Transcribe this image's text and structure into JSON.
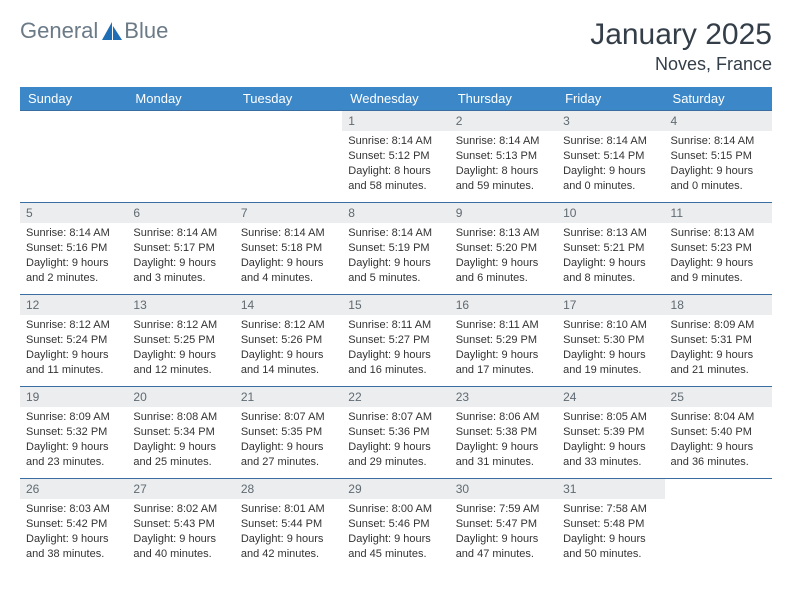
{
  "brand": {
    "name_part1": "General",
    "name_part2": "Blue",
    "color_text": "#6b7a87",
    "accent": "#1f6db3"
  },
  "header": {
    "title": "January 2025",
    "location": "Noves, France"
  },
  "calendar": {
    "header_bg": "#3b87c8",
    "header_text_color": "#ffffff",
    "daynum_bg": "#ecedee",
    "row_border": "#3b6ea0",
    "days": [
      "Sunday",
      "Monday",
      "Tuesday",
      "Wednesday",
      "Thursday",
      "Friday",
      "Saturday"
    ],
    "weeks": [
      [
        null,
        null,
        null,
        {
          "n": "1",
          "sr": "8:14 AM",
          "ss": "5:12 PM",
          "dl": "8 hours and 58 minutes."
        },
        {
          "n": "2",
          "sr": "8:14 AM",
          "ss": "5:13 PM",
          "dl": "8 hours and 59 minutes."
        },
        {
          "n": "3",
          "sr": "8:14 AM",
          "ss": "5:14 PM",
          "dl": "9 hours and 0 minutes."
        },
        {
          "n": "4",
          "sr": "8:14 AM",
          "ss": "5:15 PM",
          "dl": "9 hours and 0 minutes."
        }
      ],
      [
        {
          "n": "5",
          "sr": "8:14 AM",
          "ss": "5:16 PM",
          "dl": "9 hours and 2 minutes."
        },
        {
          "n": "6",
          "sr": "8:14 AM",
          "ss": "5:17 PM",
          "dl": "9 hours and 3 minutes."
        },
        {
          "n": "7",
          "sr": "8:14 AM",
          "ss": "5:18 PM",
          "dl": "9 hours and 4 minutes."
        },
        {
          "n": "8",
          "sr": "8:14 AM",
          "ss": "5:19 PM",
          "dl": "9 hours and 5 minutes."
        },
        {
          "n": "9",
          "sr": "8:13 AM",
          "ss": "5:20 PM",
          "dl": "9 hours and 6 minutes."
        },
        {
          "n": "10",
          "sr": "8:13 AM",
          "ss": "5:21 PM",
          "dl": "9 hours and 8 minutes."
        },
        {
          "n": "11",
          "sr": "8:13 AM",
          "ss": "5:23 PM",
          "dl": "9 hours and 9 minutes."
        }
      ],
      [
        {
          "n": "12",
          "sr": "8:12 AM",
          "ss": "5:24 PM",
          "dl": "9 hours and 11 minutes."
        },
        {
          "n": "13",
          "sr": "8:12 AM",
          "ss": "5:25 PM",
          "dl": "9 hours and 12 minutes."
        },
        {
          "n": "14",
          "sr": "8:12 AM",
          "ss": "5:26 PM",
          "dl": "9 hours and 14 minutes."
        },
        {
          "n": "15",
          "sr": "8:11 AM",
          "ss": "5:27 PM",
          "dl": "9 hours and 16 minutes."
        },
        {
          "n": "16",
          "sr": "8:11 AM",
          "ss": "5:29 PM",
          "dl": "9 hours and 17 minutes."
        },
        {
          "n": "17",
          "sr": "8:10 AM",
          "ss": "5:30 PM",
          "dl": "9 hours and 19 minutes."
        },
        {
          "n": "18",
          "sr": "8:09 AM",
          "ss": "5:31 PM",
          "dl": "9 hours and 21 minutes."
        }
      ],
      [
        {
          "n": "19",
          "sr": "8:09 AM",
          "ss": "5:32 PM",
          "dl": "9 hours and 23 minutes."
        },
        {
          "n": "20",
          "sr": "8:08 AM",
          "ss": "5:34 PM",
          "dl": "9 hours and 25 minutes."
        },
        {
          "n": "21",
          "sr": "8:07 AM",
          "ss": "5:35 PM",
          "dl": "9 hours and 27 minutes."
        },
        {
          "n": "22",
          "sr": "8:07 AM",
          "ss": "5:36 PM",
          "dl": "9 hours and 29 minutes."
        },
        {
          "n": "23",
          "sr": "8:06 AM",
          "ss": "5:38 PM",
          "dl": "9 hours and 31 minutes."
        },
        {
          "n": "24",
          "sr": "8:05 AM",
          "ss": "5:39 PM",
          "dl": "9 hours and 33 minutes."
        },
        {
          "n": "25",
          "sr": "8:04 AM",
          "ss": "5:40 PM",
          "dl": "9 hours and 36 minutes."
        }
      ],
      [
        {
          "n": "26",
          "sr": "8:03 AM",
          "ss": "5:42 PM",
          "dl": "9 hours and 38 minutes."
        },
        {
          "n": "27",
          "sr": "8:02 AM",
          "ss": "5:43 PM",
          "dl": "9 hours and 40 minutes."
        },
        {
          "n": "28",
          "sr": "8:01 AM",
          "ss": "5:44 PM",
          "dl": "9 hours and 42 minutes."
        },
        {
          "n": "29",
          "sr": "8:00 AM",
          "ss": "5:46 PM",
          "dl": "9 hours and 45 minutes."
        },
        {
          "n": "30",
          "sr": "7:59 AM",
          "ss": "5:47 PM",
          "dl": "9 hours and 47 minutes."
        },
        {
          "n": "31",
          "sr": "7:58 AM",
          "ss": "5:48 PM",
          "dl": "9 hours and 50 minutes."
        },
        null
      ]
    ],
    "labels": {
      "sunrise": "Sunrise:",
      "sunset": "Sunset:",
      "daylight": "Daylight:"
    }
  }
}
